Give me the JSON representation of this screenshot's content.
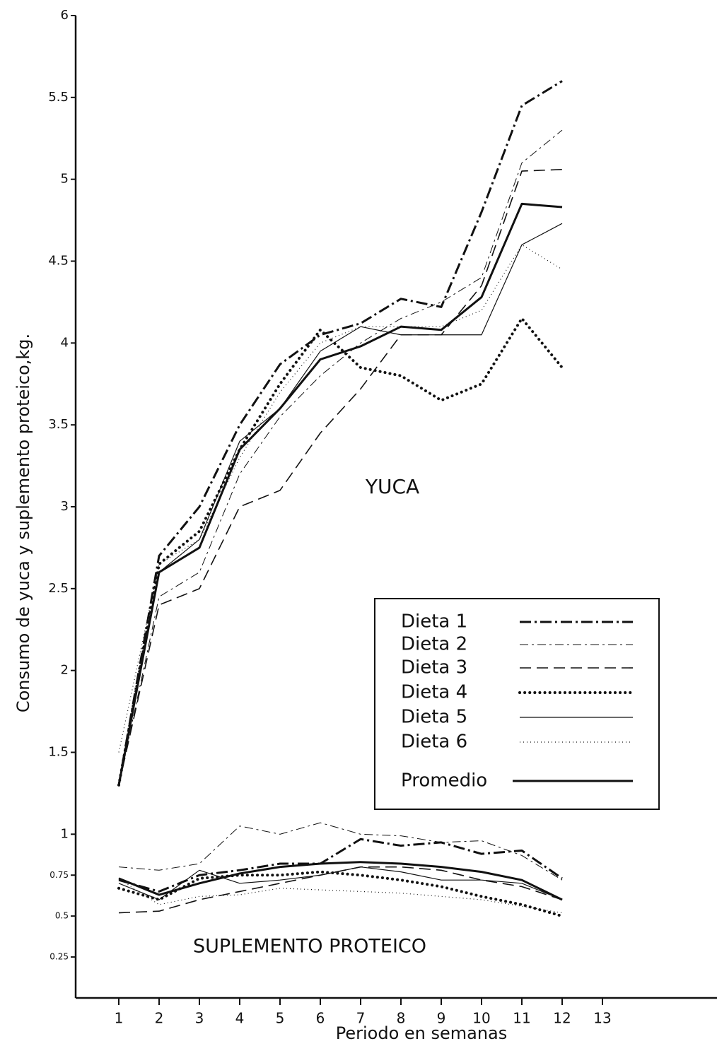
{
  "chart_data": {
    "type": "line",
    "ylabel": "Consumo de yuca y suplemento proteico,kg.",
    "xlabel": "Periodo en semanas",
    "annotations": [
      "YUCA",
      "SUPLEMENTO PROTEICO"
    ],
    "x": [
      1,
      2,
      3,
      4,
      5,
      6,
      7,
      8,
      9,
      10,
      11,
      12
    ],
    "xlim": [
      0,
      15.8
    ],
    "xticks": [
      1,
      2,
      3,
      4,
      5,
      6,
      7,
      8,
      9,
      10,
      11,
      12,
      13
    ],
    "ylim": [
      0,
      6
    ],
    "yticks": [
      6,
      5.5,
      5,
      4.5,
      4,
      3.5,
      3,
      2.5,
      2,
      1.5,
      1,
      0.75,
      0.5,
      0.25
    ],
    "color": "#111111",
    "series": [
      {
        "name": "Dieta 1",
        "style": "dash-dot-thick",
        "values": [
          1.3,
          2.7,
          3.0,
          3.5,
          3.87,
          4.05,
          4.12,
          4.27,
          4.22,
          4.8,
          5.45,
          5.6
        ]
      },
      {
        "name": "Dieta 2",
        "style": "dash-dot-thin",
        "values": [
          1.3,
          2.45,
          2.6,
          3.2,
          3.55,
          3.8,
          4.0,
          4.15,
          4.25,
          4.4,
          5.1,
          5.3
        ]
      },
      {
        "name": "Dieta 3",
        "style": "dashed",
        "values": [
          1.3,
          2.4,
          2.5,
          3.0,
          3.1,
          3.45,
          3.72,
          4.05,
          4.05,
          4.35,
          5.05,
          5.06
        ]
      },
      {
        "name": "Dieta 4",
        "style": "dotted-thick",
        "values": [
          1.3,
          2.65,
          2.85,
          3.35,
          3.75,
          4.08,
          3.85,
          3.8,
          3.65,
          3.75,
          4.15,
          3.85
        ]
      },
      {
        "name": "Dieta 5",
        "style": "solid-thin",
        "values": [
          1.3,
          2.6,
          2.8,
          3.4,
          3.6,
          3.95,
          4.1,
          4.05,
          4.05,
          4.05,
          4.6,
          4.73
        ]
      },
      {
        "name": "Dieta 6",
        "style": "dotted-thin",
        "values": [
          1.5,
          2.65,
          2.8,
          3.3,
          3.7,
          4.0,
          4.1,
          4.1,
          4.1,
          4.2,
          4.6,
          4.45
        ]
      },
      {
        "name": "Promedio",
        "style": "solid-thick",
        "values": [
          1.3,
          2.6,
          2.75,
          3.35,
          3.6,
          3.9,
          3.98,
          4.1,
          4.08,
          4.28,
          4.85,
          4.83
        ]
      }
    ],
    "supplement_series": [
      {
        "values": [
          0.72,
          0.65,
          0.75,
          0.78,
          0.82,
          0.82,
          0.97,
          0.93,
          0.95,
          0.88,
          0.9,
          0.73
        ]
      },
      {
        "values": [
          0.8,
          0.78,
          0.82,
          1.05,
          1.0,
          1.07,
          1.0,
          0.99,
          0.95,
          0.96,
          0.87,
          0.72
        ]
      },
      {
        "values": [
          0.52,
          0.53,
          0.6,
          0.65,
          0.7,
          0.75,
          0.8,
          0.8,
          0.78,
          0.72,
          0.68,
          0.6
        ]
      },
      {
        "values": [
          0.67,
          0.6,
          0.73,
          0.75,
          0.75,
          0.77,
          0.75,
          0.72,
          0.68,
          0.62,
          0.57,
          0.5
        ]
      },
      {
        "values": [
          0.7,
          0.6,
          0.78,
          0.7,
          0.72,
          0.75,
          0.8,
          0.77,
          0.72,
          0.72,
          0.7,
          0.6
        ]
      },
      {
        "values": [
          0.73,
          0.57,
          0.62,
          0.63,
          0.67,
          0.66,
          0.65,
          0.64,
          0.62,
          0.6,
          0.56,
          0.52
        ]
      },
      {
        "values": [
          0.73,
          0.63,
          0.7,
          0.76,
          0.8,
          0.82,
          0.83,
          0.82,
          0.8,
          0.77,
          0.72,
          0.6
        ]
      }
    ]
  }
}
